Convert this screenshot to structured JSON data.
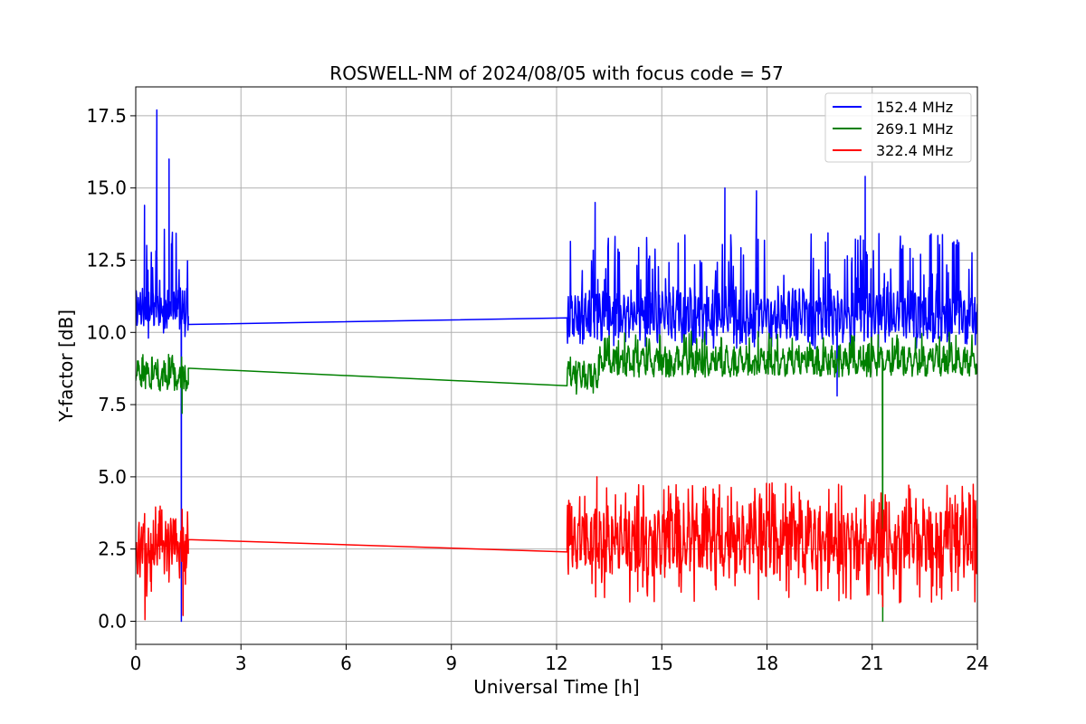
{
  "chart_data": {
    "type": "line",
    "title": "ROSWELL-NM of 2024/08/05 with focus code = 57",
    "xlabel": "Universal Time [h]",
    "ylabel": "Y-factor [dB]",
    "xlim": [
      0,
      24
    ],
    "ylim": [
      -0.8,
      18.5
    ],
    "x_ticks": [
      0,
      3,
      6,
      9,
      12,
      15,
      18,
      21,
      24
    ],
    "y_ticks": [
      0.0,
      2.5,
      5.0,
      7.5,
      10.0,
      12.5,
      15.0,
      17.5
    ],
    "x_tick_labels": [
      "0",
      "3",
      "6",
      "9",
      "12",
      "15",
      "18",
      "21",
      "24"
    ],
    "y_tick_labels": [
      "0.0",
      "2.5",
      "5.0",
      "7.5",
      "10.0",
      "12.5",
      "15.0",
      "17.5"
    ],
    "grid": true,
    "legend_position": "top-right",
    "series": [
      {
        "name": "152.4 MHz",
        "color": "#0000ff",
        "segments": [
          {
            "x_start": 0.0,
            "x_end": 1.5,
            "baseline": 10.8,
            "spread": 0.7,
            "noise_up": 2.5,
            "noise_down": 0.8,
            "period": 0.06
          },
          {
            "x_start": 1.5,
            "x_end": 12.3,
            "y_start": 10.55,
            "y_end": 10.5,
            "flat": true
          },
          {
            "x_start": 12.3,
            "x_end": 24.0,
            "baseline": 10.6,
            "spread": 0.9,
            "noise_up": 2.4,
            "noise_down": 0.9,
            "period": 0.1
          }
        ],
        "peaks": [
          {
            "x": 0.6,
            "y": 17.7
          },
          {
            "x": 0.95,
            "y": 16.0
          },
          {
            "x": 0.25,
            "y": 14.4
          },
          {
            "x": 13.1,
            "y": 14.5
          },
          {
            "x": 16.8,
            "y": 15.0
          },
          {
            "x": 17.7,
            "y": 14.9
          },
          {
            "x": 20.8,
            "y": 15.4
          }
        ],
        "dips": [
          {
            "x": 1.3,
            "y": 0.0
          },
          {
            "x": 20.0,
            "y": 7.8
          }
        ]
      },
      {
        "name": "269.1 MHz",
        "color": "#008000",
        "segments": [
          {
            "x_start": 0.0,
            "x_end": 1.5,
            "baseline": 8.5,
            "spread": 0.5,
            "noise_up": 0.5,
            "noise_down": 0.4,
            "period": 0.25
          },
          {
            "x_start": 1.5,
            "x_end": 12.3,
            "y_start": 8.2,
            "y_end": 8.15,
            "flat": true
          },
          {
            "x_start": 12.3,
            "x_end": 13.2,
            "baseline": 8.5,
            "spread": 0.5,
            "noise_up": 0.4,
            "noise_down": 0.5,
            "period": 0.15
          },
          {
            "x_start": 13.2,
            "x_end": 24.0,
            "baseline": 9.0,
            "spread": 0.5,
            "noise_up": 0.8,
            "noise_down": 0.4,
            "period": 0.2
          }
        ],
        "peaks": [],
        "dips": [
          {
            "x": 1.32,
            "y": 7.2
          },
          {
            "x": 21.3,
            "y": 0.0
          }
        ]
      },
      {
        "name": "322.4 MHz",
        "color": "#ff0000",
        "segments": [
          {
            "x_start": 0.0,
            "x_end": 1.5,
            "baseline": 2.5,
            "spread": 1.0,
            "noise_up": 1.2,
            "noise_down": 2.2,
            "period": 0.07
          },
          {
            "x_start": 1.5,
            "x_end": 12.3,
            "y_start": 2.35,
            "y_end": 2.4,
            "flat": true
          },
          {
            "x_start": 12.3,
            "x_end": 24.0,
            "baseline": 2.8,
            "spread": 1.2,
            "noise_up": 1.4,
            "noise_down": 1.8,
            "period": 0.12
          }
        ],
        "peaks": [
          {
            "x": 13.15,
            "y": 5.0
          },
          {
            "x": 21.2,
            "y": 4.1
          }
        ],
        "dips": [
          {
            "x": 1.35,
            "y": 0.2
          },
          {
            "x": 21.3,
            "y": 0.5
          }
        ]
      }
    ]
  }
}
